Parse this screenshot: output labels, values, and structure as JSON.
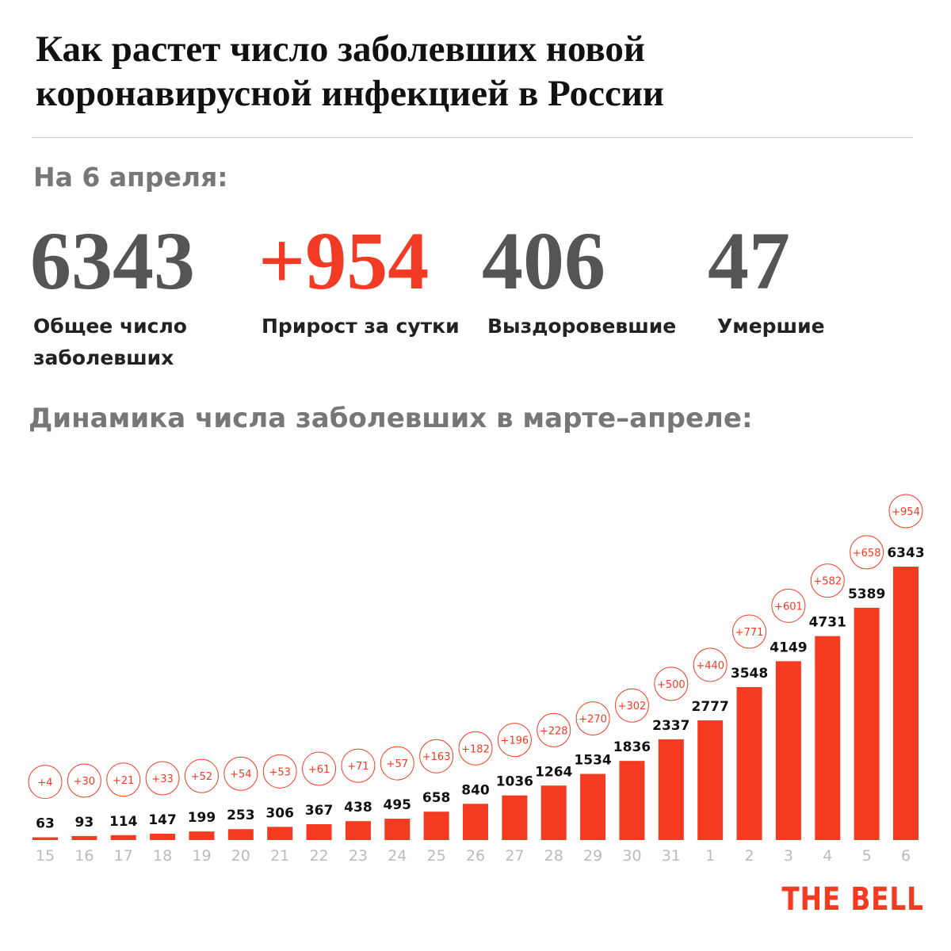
{
  "title": "Как растет число заболевших новой коронавирусной инфекцией в России",
  "date_label": "На 6 апреля:",
  "stats": [
    {
      "value": "6343",
      "label": "Общее число заболевших"
    },
    {
      "value": "+954",
      "label": "Прирост за сутки"
    },
    {
      "value": "406",
      "label": "Выздоровевшие"
    },
    {
      "value": "47",
      "label": "Умершие"
    }
  ],
  "chart_data": {
    "type": "bar",
    "title": "Динамика числа заболевших в марте–апреле:",
    "categories": [
      "15",
      "16",
      "17",
      "18",
      "19",
      "20",
      "21",
      "22",
      "23",
      "24",
      "25",
      "26",
      "27",
      "28",
      "29",
      "30",
      "31",
      "1",
      "2",
      "3",
      "4",
      "5",
      "6"
    ],
    "values": [
      63,
      93,
      114,
      147,
      199,
      253,
      306,
      367,
      438,
      495,
      658,
      840,
      1036,
      1264,
      1534,
      1836,
      2337,
      2777,
      3548,
      4149,
      4731,
      5389,
      6343
    ],
    "color": "#f53a22",
    "increments": {
      "values": [
        4,
        30,
        21,
        33,
        52,
        54,
        53,
        61,
        71,
        57,
        163,
        182,
        196,
        228,
        270,
        302,
        500,
        440,
        771,
        601,
        582,
        658,
        954
      ],
      "value_labels": [
        "+4",
        "+30",
        "+21",
        "+33",
        "+52",
        "+54",
        "+53",
        "+61",
        "+71",
        "+57",
        "+163",
        "+182",
        "+196",
        "+228",
        "+270",
        "+302",
        "+500",
        "+440",
        "+771",
        "+601",
        "+582",
        "+658",
        "+954"
      ]
    }
  },
  "logo": "THE BELL"
}
